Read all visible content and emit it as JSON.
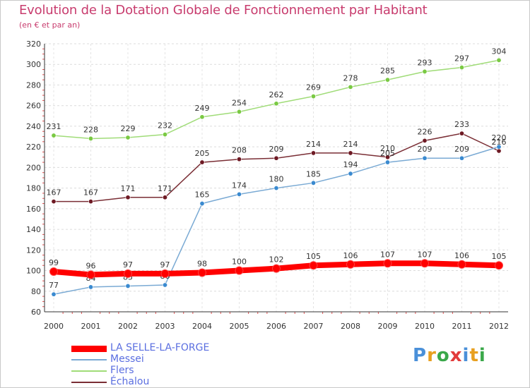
{
  "title": "Evolution de la Dotation Globale de Fonctionnement par Habitant",
  "subtitle": "(en € et par an)",
  "logo": {
    "text": "Proxiti",
    "colors": [
      "#4a90d9",
      "#e8a020",
      "#3aa84a",
      "#e23b3b",
      "#4a90d9",
      "#e8a020",
      "#3aa84a"
    ]
  },
  "chart_data": {
    "type": "line",
    "x": [
      "2000",
      "2001",
      "2002",
      "2003",
      "2004",
      "2005",
      "2006",
      "2007",
      "2008",
      "2009",
      "2010",
      "2011",
      "2012"
    ],
    "ylim": [
      60,
      320
    ],
    "yticks": [
      "60",
      "80",
      "100",
      "120",
      "140",
      "160",
      "180",
      "200",
      "220",
      "240",
      "260",
      "280",
      "300",
      "320"
    ],
    "grid": true,
    "series": [
      {
        "name": "Flers",
        "color": "#a0dc78",
        "marker": "#7ac943",
        "values": [
          231,
          228,
          229,
          232,
          249,
          254,
          262,
          269,
          278,
          285,
          293,
          297,
          304
        ],
        "labels": [
          "231",
          "228",
          "229",
          "232",
          "249",
          "254",
          "262",
          "269",
          "278",
          "285",
          "293",
          "297",
          "304"
        ]
      },
      {
        "name": "Échalou",
        "color": "#7a2e35",
        "marker": "#6e1a24",
        "values": [
          167,
          167,
          171,
          171,
          205,
          208,
          209,
          214,
          214,
          210,
          226,
          233,
          216
        ],
        "labels": [
          "167",
          "167",
          "171",
          "171",
          "205",
          "208",
          "209",
          "214",
          "214",
          "210",
          "226",
          "233",
          "216"
        ]
      },
      {
        "name": "Messei",
        "color": "#7aaad4",
        "marker": "#3a8ad0",
        "values": [
          77,
          84,
          85,
          86,
          165,
          174,
          180,
          185,
          194,
          205,
          209,
          209,
          220
        ],
        "labels": [
          "77",
          "84",
          "85",
          "86",
          "165",
          "174",
          "180",
          "185",
          "194",
          "205",
          "209",
          "209",
          "220"
        ]
      },
      {
        "name": "LA SELLE-LA-FORGE",
        "color": "#ff0000",
        "marker": "#ff0000",
        "values": [
          99,
          96,
          97,
          97,
          98,
          100,
          102,
          105,
          106,
          107,
          107,
          106,
          105
        ],
        "labels": [
          "99",
          "96",
          "97",
          "97",
          "98",
          "100",
          "102",
          "105",
          "106",
          "107",
          "107",
          "106",
          "105"
        ]
      }
    ],
    "legend": [
      {
        "name": "LA SELLE-LA-FORGE",
        "color": "#ff0000",
        "weight": "thick"
      },
      {
        "name": "Messei",
        "color": "#7aaad4",
        "weight": "thin"
      },
      {
        "name": "Flers",
        "color": "#a0dc78",
        "weight": "thin"
      },
      {
        "name": "Échalou",
        "color": "#7a2e35",
        "weight": "thin"
      }
    ],
    "legend_position": "bottom-left"
  }
}
